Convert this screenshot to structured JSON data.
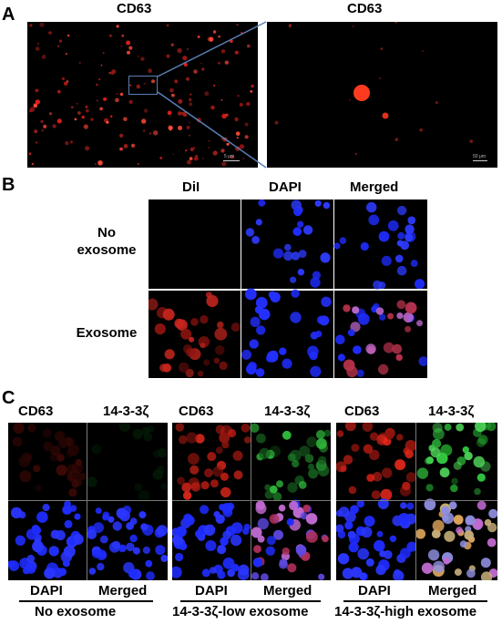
{
  "panel_a": {
    "letter": "A",
    "left_title": "CD63",
    "right_title": "CD63",
    "scale_left": "5 μm",
    "scale_right": "50 μm"
  },
  "panel_b": {
    "letter": "B",
    "columns": [
      "DiI",
      "DAPI",
      "Merged"
    ],
    "rows": [
      "No\nexosome",
      "Exosome"
    ]
  },
  "panel_c": {
    "letter": "C",
    "groups": [
      {
        "top": [
          "CD63",
          "14-3-3ζ"
        ],
        "bottom": [
          "DAPI",
          "Merged"
        ],
        "condition": "No exosome"
      },
      {
        "top": [
          "CD63",
          "14-3-3ζ"
        ],
        "bottom": [
          "DAPI",
          "Merged"
        ],
        "condition": "14-3-3ζ-low exosome"
      },
      {
        "top": [
          "CD63",
          "14-3-3ζ"
        ],
        "bottom": [
          "DAPI",
          "Merged"
        ],
        "condition": "14-3-3ζ-high exosome"
      }
    ]
  },
  "colors": {
    "cd63_red": "#e0201a",
    "dapi_blue": "#1f2cff",
    "green": "#2fb83a",
    "merged_pink": "#c06ad0",
    "zoom_box": "#5b7fb5"
  }
}
